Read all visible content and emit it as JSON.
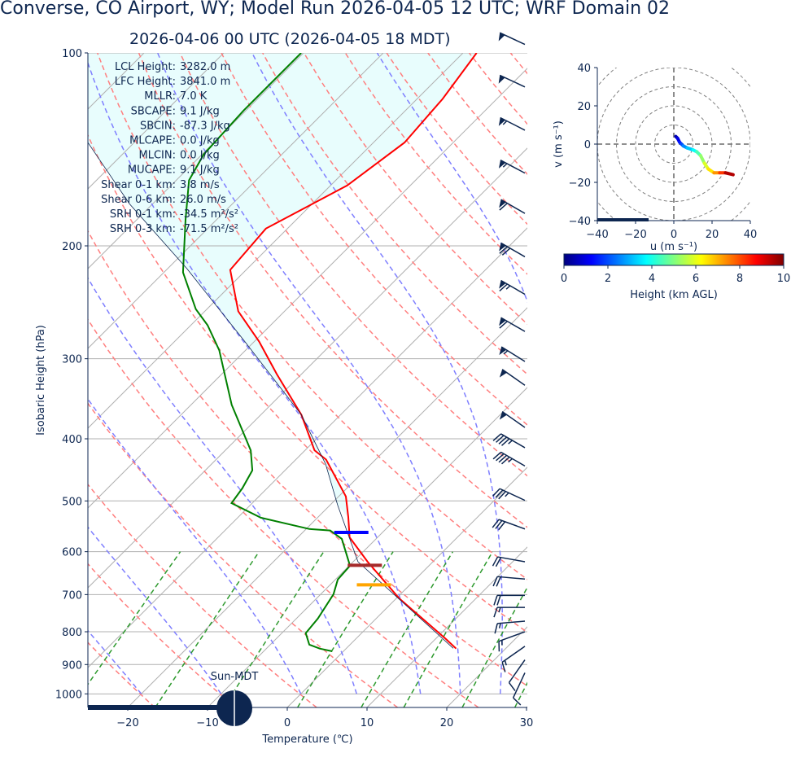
{
  "title": "Converse, CO Airport, WY; Model Run 2026-04-05 12 UTC; WRF Domain 02",
  "subtitle": "2026-04-06 00 UTC  (2026-04-05 18 MDT)",
  "stats": [
    {
      "label": "LCL Height:",
      "value": "3282.0 m"
    },
    {
      "label": "LFC Height:",
      "value": "3841.0 m"
    },
    {
      "label": "MLLR:",
      "value": "7.0 K"
    },
    {
      "label": "SBCAPE:",
      "value": "9.1 J/kg"
    },
    {
      "label": "SBCIN:",
      "value": "-87.3 J/kg"
    },
    {
      "label": "MLCAPE:",
      "value": "0.0 J/kg"
    },
    {
      "label": "MLCIN:",
      "value": "0.0 J/kg"
    },
    {
      "label": "MUCAPE:",
      "value": "9.1 J/kg"
    },
    {
      "label": "Shear 0-1 km:",
      "value": "3.8 m/s"
    },
    {
      "label": "Shear 0-6 km:",
      "value": "26.0 m/s"
    },
    {
      "label": "SRH 0-1 km:",
      "value": "-34.5 m²/s²"
    },
    {
      "label": "SRH 0-3 km:",
      "value": "-71.5 m²/s²"
    }
  ],
  "sun_label": "Sun-MDT",
  "colors": {
    "text": "#0d2650",
    "temperature": "#ff0000",
    "dewpoint": "#008000",
    "parcel": "#0d2650",
    "cin_fill": "#e8fdfd",
    "dry_adiabat": "#ff7f7f",
    "moist_adiabat": "#7f7fff",
    "mixing_ratio": "#2e9a2e",
    "isotherm": "#b0b0b0"
  },
  "chart_data": [
    {
      "type": "line",
      "name": "skew-t",
      "xlabel": "Temperature (℃)",
      "ylabel": "Isobaric Height (hPa)",
      "xlim": [
        -25,
        30
      ],
      "ylim": [
        1050,
        100
      ],
      "xticks": [
        "−20",
        "−10",
        "0",
        "10",
        "20",
        "30"
      ],
      "xtick_values": [
        -20,
        -10,
        0,
        10,
        20,
        30
      ],
      "yticks": [
        100,
        200,
        300,
        400,
        500,
        600,
        700,
        800,
        900,
        1000
      ],
      "series": [
        {
          "name": "temperature",
          "color": "#ff0000",
          "points": [
            [
              850,
              13.8
            ],
            [
              821,
              11.3
            ],
            [
              709,
              0.3
            ],
            [
              622,
              -8.2
            ],
            [
              570,
              -13.5
            ],
            [
              530,
              -16.2
            ],
            [
              492,
              -19.1
            ],
            [
              431,
              -26.2
            ],
            [
              417,
              -28.8
            ],
            [
              367,
              -34.9
            ],
            [
              317,
              -43.1
            ],
            [
              282,
              -49.4
            ],
            [
              253,
              -55.8
            ],
            [
              218,
              -62.0
            ],
            [
              188,
              -62.7
            ],
            [
              161,
              -57.9
            ],
            [
              138,
              -56.1
            ],
            [
              118,
              -56.8
            ],
            [
              100,
              -58.3
            ]
          ]
        },
        {
          "name": "dewpoint",
          "color": "#008000",
          "points": [
            [
              858,
              -1.4
            ],
            [
              850,
              -3.3
            ],
            [
              838,
              -5.1
            ],
            [
              804,
              -7.0
            ],
            [
              763,
              -7.3
            ],
            [
              699,
              -8.4
            ],
            [
              663,
              -9.7
            ],
            [
              631,
              -9.9
            ],
            [
              573,
              -14.3
            ],
            [
              556,
              -16.8
            ],
            [
              553,
              -19.6
            ],
            [
              531,
              -27.1
            ],
            [
              504,
              -32.6
            ],
            [
              478,
              -33.1
            ],
            [
              448,
              -34.1
            ],
            [
              417,
              -36.8
            ],
            [
              354,
              -44.9
            ],
            [
              291,
              -53.3
            ],
            [
              266,
              -57.9
            ],
            [
              251,
              -61.4
            ],
            [
              220,
              -67.6
            ],
            [
              182,
              -73.9
            ],
            [
              158,
              -78.4
            ],
            [
              144,
              -79.8
            ],
            [
              123,
              -80.3
            ],
            [
              100,
              -80.3
            ]
          ]
        },
        {
          "name": "parcel",
          "color": "#0d2650",
          "points": [
            [
              849,
              13.4
            ],
            [
              622,
              -9.4
            ],
            [
              507,
              -19.1
            ],
            [
              438,
              -25.7
            ],
            [
              367,
              -34.9
            ],
            [
              282,
              -51.2
            ],
            [
              217,
              -67.6
            ],
            [
              172,
              -82.9
            ],
            [
              138,
              -95.8
            ]
          ]
        }
      ],
      "level_markers": [
        {
          "name": "lcl",
          "color": "#0000ff",
          "pressure": 560,
          "temperature": -13.9
        },
        {
          "name": "lfc",
          "color": "#a52a2a",
          "pressure": 630,
          "temperature": -8.1
        },
        {
          "name": "el",
          "color": "#ffa500",
          "pressure": 676,
          "temperature": -4.5
        }
      ],
      "wind_barbs": [
        {
          "p": 97,
          "speed_kt": 50,
          "dir": 295
        },
        {
          "p": 113,
          "speed_kt": 50,
          "dir": 295
        },
        {
          "p": 132,
          "speed_kt": 55,
          "dir": 297
        },
        {
          "p": 154,
          "speed_kt": 55,
          "dir": 298
        },
        {
          "p": 178,
          "speed_kt": 60,
          "dir": 300
        },
        {
          "p": 208,
          "speed_kt": 70,
          "dir": 300
        },
        {
          "p": 238,
          "speed_kt": 65,
          "dir": 300
        },
        {
          "p": 272,
          "speed_kt": 60,
          "dir": 300
        },
        {
          "p": 303,
          "speed_kt": 55,
          "dir": 302
        },
        {
          "p": 330,
          "speed_kt": 50,
          "dir": 305
        },
        {
          "p": 384,
          "speed_kt": 50,
          "dir": 305
        },
        {
          "p": 413,
          "speed_kt": 45,
          "dir": 300
        },
        {
          "p": 441,
          "speed_kt": 45,
          "dir": 300
        },
        {
          "p": 499,
          "speed_kt": 35,
          "dir": 295
        },
        {
          "p": 553,
          "speed_kt": 30,
          "dir": 290
        },
        {
          "p": 622,
          "speed_kt": 20,
          "dir": 280
        },
        {
          "p": 662,
          "speed_kt": 20,
          "dir": 275
        },
        {
          "p": 702,
          "speed_kt": 20,
          "dir": 270
        },
        {
          "p": 733,
          "speed_kt": 15,
          "dir": 270
        },
        {
          "p": 770,
          "speed_kt": 15,
          "dir": 265
        },
        {
          "p": 800,
          "speed_kt": 15,
          "dir": 250
        },
        {
          "p": 843,
          "speed_kt": 15,
          "dir": 235
        },
        {
          "p": 885,
          "speed_kt": 10,
          "dir": 215
        },
        {
          "p": 927,
          "speed_kt": 10,
          "dir": 205
        }
      ]
    },
    {
      "type": "line",
      "name": "hodograph",
      "xlabel": "u (m s⁻¹)",
      "ylabel": "v (m s⁻¹)",
      "xlim": [
        -40,
        40
      ],
      "ylim": [
        -40,
        40
      ],
      "xticks": [
        "−40",
        "−20",
        "0",
        "20",
        "40"
      ],
      "yticks": [
        "40",
        "20",
        "0",
        "−20",
        "−40"
      ],
      "tick_values": [
        -40,
        -20,
        0,
        20,
        40
      ],
      "rings": [
        10,
        20,
        30,
        40,
        50
      ],
      "points": [
        [
          1,
          4,
          0
        ],
        [
          2,
          3,
          0.5
        ],
        [
          3,
          1,
          1
        ],
        [
          4,
          0,
          1.5
        ],
        [
          5,
          -1,
          2
        ],
        [
          7,
          -2,
          2.6
        ],
        [
          10,
          -3,
          3.2
        ],
        [
          12,
          -4,
          3.8
        ],
        [
          14,
          -6,
          4.5
        ],
        [
          16,
          -10,
          5.2
        ],
        [
          18,
          -13,
          5.9
        ],
        [
          21,
          -15,
          6.5
        ],
        [
          24,
          -15,
          7.3
        ],
        [
          27,
          -15,
          8.2
        ],
        [
          31,
          -16,
          9.5
        ]
      ],
      "colorbar": {
        "label": "Height (km AGL)",
        "ticks": [
          "0",
          "2",
          "4",
          "6",
          "8",
          "10"
        ],
        "range": [
          0,
          10
        ]
      }
    }
  ]
}
